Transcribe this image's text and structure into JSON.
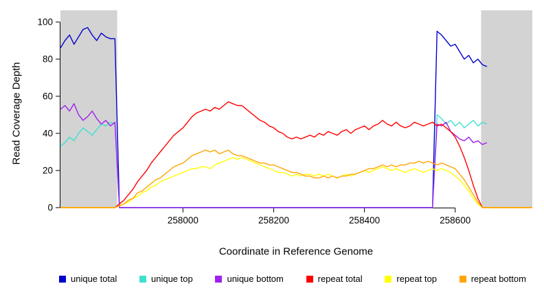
{
  "chart_data": {
    "type": "line",
    "title": "",
    "xlabel": "Coordinate in Reference Genome",
    "ylabel": "Read Coverage Depth",
    "xlim": [
      257730,
      258770
    ],
    "ylim": [
      0,
      100
    ],
    "x_ticks": [
      258000,
      258200,
      258400,
      258600
    ],
    "y_ticks": [
      0,
      20,
      40,
      60,
      80,
      100
    ],
    "grid": false,
    "legend_position": "bottom",
    "shaded_regions": [
      {
        "x0": 257730,
        "x1": 257855,
        "color": "#D3D3D3"
      },
      {
        "x0": 258657,
        "x1": 258770,
        "color": "#D3D3D3"
      }
    ],
    "x_start": 257730,
    "x_step": 10,
    "series": [
      {
        "name": "unique total",
        "color": "#0000CD",
        "values": [
          86,
          90,
          93,
          88,
          92,
          96,
          97,
          93,
          90,
          94,
          92,
          91,
          91,
          0,
          0,
          0,
          0,
          0,
          0,
          0,
          0,
          0,
          0,
          0,
          0,
          0,
          0,
          0,
          0,
          0,
          0,
          0,
          0,
          0,
          0,
          0,
          0,
          0,
          0,
          0,
          0,
          0,
          0,
          0,
          0,
          0,
          0,
          0,
          0,
          0,
          0,
          0,
          0,
          0,
          0,
          0,
          0,
          0,
          0,
          0,
          0,
          0,
          0,
          0,
          0,
          0,
          0,
          0,
          0,
          0,
          0,
          0,
          0,
          0,
          0,
          0,
          0,
          0,
          0,
          0,
          0,
          0,
          0,
          95,
          93,
          90,
          87,
          88,
          84,
          80,
          82,
          78,
          80,
          77,
          76
        ]
      },
      {
        "name": "unique top",
        "color": "#40E0D0",
        "values": [
          33,
          35,
          38,
          36,
          40,
          43,
          41,
          39,
          42,
          45,
          44,
          46,
          45,
          0,
          0,
          0,
          0,
          0,
          0,
          0,
          0,
          0,
          0,
          0,
          0,
          0,
          0,
          0,
          0,
          0,
          0,
          0,
          0,
          0,
          0,
          0,
          0,
          0,
          0,
          0,
          0,
          0,
          0,
          0,
          0,
          0,
          0,
          0,
          0,
          0,
          0,
          0,
          0,
          0,
          0,
          0,
          0,
          0,
          0,
          0,
          0,
          0,
          0,
          0,
          0,
          0,
          0,
          0,
          0,
          0,
          0,
          0,
          0,
          0,
          0,
          0,
          0,
          0,
          0,
          0,
          0,
          0,
          0,
          50,
          48,
          45,
          47,
          44,
          46,
          43,
          45,
          47,
          44,
          46,
          45
        ]
      },
      {
        "name": "unique bottom",
        "color": "#A020F0",
        "values": [
          53,
          55,
          52,
          56,
          50,
          47,
          49,
          52,
          48,
          45,
          47,
          44,
          46,
          0,
          0,
          0,
          0,
          0,
          0,
          0,
          0,
          0,
          0,
          0,
          0,
          0,
          0,
          0,
          0,
          0,
          0,
          0,
          0,
          0,
          0,
          0,
          0,
          0,
          0,
          0,
          0,
          0,
          0,
          0,
          0,
          0,
          0,
          0,
          0,
          0,
          0,
          0,
          0,
          0,
          0,
          0,
          0,
          0,
          0,
          0,
          0,
          0,
          0,
          0,
          0,
          0,
          0,
          0,
          0,
          0,
          0,
          0,
          0,
          0,
          0,
          0,
          0,
          0,
          0,
          0,
          0,
          0,
          0,
          45,
          44,
          46,
          41,
          39,
          37,
          36,
          38,
          35,
          36,
          34,
          35
        ]
      },
      {
        "name": "repeat total",
        "color": "#FF0000",
        "values": [
          0,
          0,
          0,
          0,
          0,
          0,
          0,
          0,
          0,
          0,
          0,
          0,
          0,
          2,
          4,
          7,
          10,
          14,
          17,
          20,
          24,
          27,
          30,
          33,
          36,
          39,
          41,
          43,
          46,
          49,
          51,
          52,
          53,
          52,
          54,
          53,
          55,
          57,
          56,
          55,
          55,
          53,
          51,
          49,
          47,
          46,
          44,
          43,
          41,
          40,
          38,
          37,
          38,
          37,
          38,
          39,
          38,
          40,
          39,
          41,
          40,
          39,
          41,
          42,
          40,
          42,
          43,
          44,
          42,
          44,
          45,
          47,
          45,
          44,
          46,
          44,
          43,
          44,
          46,
          45,
          44,
          45,
          46,
          44,
          45,
          43,
          41,
          38,
          33,
          27,
          20,
          12,
          5,
          0,
          0,
          0,
          0,
          0,
          0,
          0,
          0,
          0,
          0,
          0,
          0
        ]
      },
      {
        "name": "repeat top",
        "color": "#FFFF00",
        "values": [
          0,
          0,
          0,
          0,
          0,
          0,
          0,
          0,
          0,
          0,
          0,
          0,
          0,
          1,
          2,
          3,
          5,
          6,
          8,
          9,
          11,
          12,
          14,
          15,
          16,
          17,
          18,
          19,
          20,
          21,
          21,
          22,
          22,
          21,
          23,
          24,
          25,
          26,
          27,
          26,
          27,
          26,
          25,
          24,
          23,
          22,
          21,
          20,
          19,
          19,
          18,
          17,
          18,
          17,
          18,
          18,
          17,
          18,
          17,
          18,
          17,
          16,
          17,
          18,
          17,
          18,
          19,
          20,
          19,
          20,
          21,
          22,
          21,
          20,
          21,
          20,
          19,
          20,
          21,
          20,
          19,
          20,
          21,
          20,
          21,
          20,
          19,
          17,
          15,
          12,
          9,
          5,
          2,
          0,
          0,
          0,
          0,
          0,
          0,
          0,
          0,
          0,
          0,
          0,
          0
        ]
      },
      {
        "name": "repeat bottom",
        "color": "#FFA500",
        "values": [
          0,
          0,
          0,
          0,
          0,
          0,
          0,
          0,
          0,
          0,
          0,
          0,
          0,
          1,
          2,
          4,
          5,
          8,
          9,
          11,
          13,
          15,
          16,
          18,
          20,
          22,
          23,
          24,
          26,
          28,
          29,
          30,
          31,
          30,
          31,
          29,
          30,
          31,
          29,
          28,
          28,
          27,
          26,
          25,
          24,
          24,
          23,
          23,
          22,
          21,
          20,
          19,
          19,
          18,
          17,
          17,
          16,
          16,
          17,
          16,
          17,
          16,
          17,
          17,
          18,
          18,
          19,
          20,
          21,
          21,
          22,
          23,
          22,
          23,
          22,
          23,
          23,
          24,
          24,
          25,
          24,
          25,
          24,
          23,
          24,
          23,
          22,
          21,
          18,
          15,
          11,
          7,
          3,
          0,
          0,
          0,
          0,
          0,
          0,
          0,
          0,
          0,
          0,
          0,
          0
        ]
      }
    ]
  }
}
